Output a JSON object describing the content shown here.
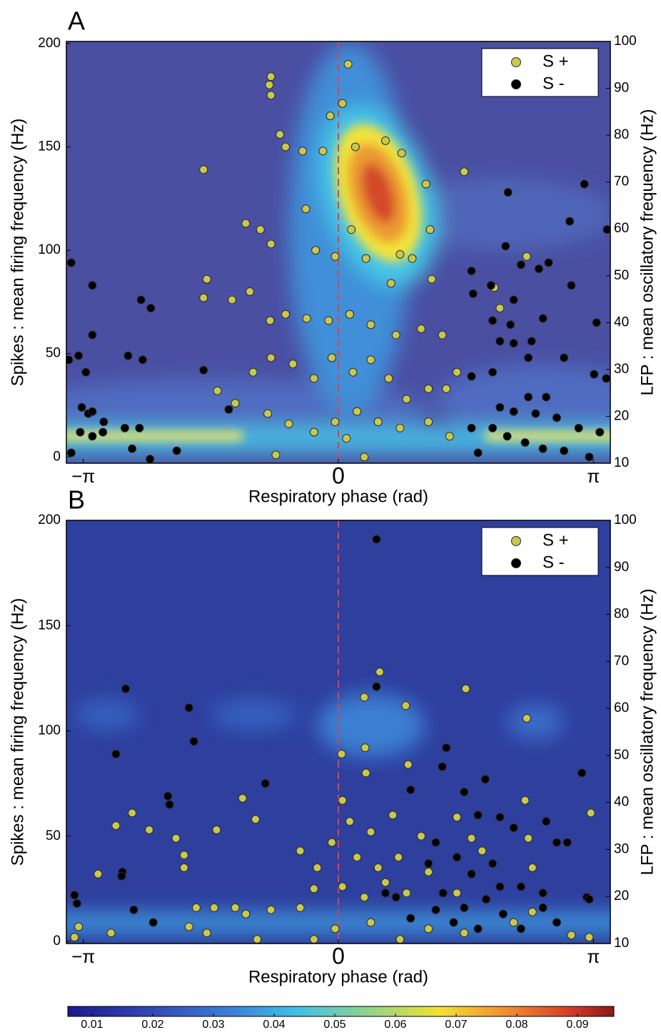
{
  "chart_data": [
    {
      "type": "scatter",
      "panel_label": "A",
      "xlabel": "Respiratory phase (rad)",
      "ylabel": "Spikes : mean firing frequency (Hz)",
      "y2label": "LFP : mean oscillatory frequency (Hz)",
      "xlim": [
        -3.35,
        3.35
      ],
      "xticks": [
        {
          "value": -3.1416,
          "label": "−π"
        },
        {
          "value": 0,
          "label": "0"
        },
        {
          "value": 3.1416,
          "label": "π"
        }
      ],
      "ylim": [
        -3,
        201
      ],
      "yticks": [
        0,
        50,
        100,
        150,
        200
      ],
      "y2lim": [
        10,
        100
      ],
      "y2ticks": [
        10,
        20,
        30,
        40,
        50,
        60,
        70,
        80,
        90,
        100
      ],
      "reference_x": 0,
      "reference_color": "#e0404a",
      "legend": "upper right",
      "series": [
        {
          "name": "S +",
          "color": "#c9c84e",
          "x": [
            0.12,
            -0.83,
            -0.85,
            -0.83,
            -0.72,
            -0.65,
            -1.66,
            -0.1,
            0.05,
            0.21,
            0.58,
            0.78,
            1.08,
            1.55,
            -0.44,
            -0.19,
            -0.4,
            -1.14,
            -0.96,
            -0.83,
            -1.62,
            -1.66,
            -1.31,
            -1.09,
            -0.28,
            -0.04,
            0.16,
            0.34,
            0.76,
            0.91,
            1.13,
            1.15,
            0.65,
            -0.84,
            -0.65,
            -0.39,
            -0.12,
            0.14,
            0.4,
            0.71,
            1.02,
            1.28,
            -1.49,
            -1.27,
            -1.05,
            -0.83,
            -0.56,
            -0.3,
            -0.08,
            0.18,
            0.4,
            0.62,
            0.84,
            1.11,
            1.33,
            1.46,
            -0.87,
            -0.61,
            -0.3,
            -0.04,
            0.23,
            0.49,
            0.76,
            1.11,
            1.37,
            -0.77,
            0.32,
            0.1,
            1.92,
            1.99,
            2.32
          ],
          "values": [
            190,
            184,
            180,
            175,
            156,
            150,
            139,
            165,
            171,
            150,
            153,
            147,
            132,
            138,
            148,
            148,
            120,
            113,
            110,
            103,
            86,
            77,
            76,
            80,
            100,
            97,
            110,
            96,
            98,
            96,
            110,
            86,
            84,
            66,
            69,
            67,
            66,
            69,
            64,
            59,
            62,
            59,
            32,
            26,
            41,
            48,
            45,
            38,
            48,
            41,
            47,
            38,
            28,
            33,
            33,
            41,
            21,
            16,
            12,
            17,
            22,
            17,
            14,
            17,
            10,
            1,
            0,
            9,
            82,
            72,
            97
          ]
        },
        {
          "name": "S -",
          "color": "#000000",
          "x": [
            -3.29,
            -3.03,
            -3.03,
            -2.43,
            -2.31,
            -2.59,
            -2.41,
            -3.32,
            -3.2,
            -3.11,
            -1.66,
            -3.16,
            -3.08,
            -3.03,
            -2.89,
            -3.18,
            -3.03,
            -2.9,
            -2.63,
            -2.45,
            -2.54,
            -2.32,
            -1.99,
            -3.29,
            -1.35,
            2.09,
            3.03,
            2.85,
            3.31,
            2.06,
            2.25,
            2.47,
            2.59,
            1.64,
            1.88,
            1.66,
            2.16,
            2.52,
            2.87,
            1.9,
            2.12,
            3.18,
            2.38,
            2.16,
            1.99,
            2.34,
            2.78,
            1.9,
            1.64,
            3.15,
            3.3,
            2.34,
            2.56,
            1.99,
            2.16,
            2.43,
            2.69,
            2.96,
            3.22,
            1.9,
            2.08,
            2.3,
            2.52,
            2.78,
            3.09,
            1.72,
            1.64
          ],
          "values": [
            94,
            83,
            59,
            76,
            72,
            49,
            47,
            47,
            49,
            41,
            42,
            24,
            21,
            22,
            17,
            12,
            10,
            12,
            14,
            14,
            4,
            -1,
            3,
            2,
            23,
            128,
            132,
            114,
            110,
            102,
            93,
            91,
            94,
            90,
            83,
            79,
            76,
            67,
            83,
            66,
            64,
            65,
            56,
            55,
            56,
            48,
            48,
            41,
            39,
            40,
            38,
            29,
            29,
            24,
            22,
            21,
            19,
            14,
            12,
            14,
            10,
            7,
            4,
            3,
            0,
            2,
            14
          ]
        }
      ]
    },
    {
      "type": "scatter",
      "panel_label": "B",
      "xlabel": "Respiratory phase (rad)",
      "ylabel": "Spikes : mean firing frequency (Hz)",
      "y2label": "LFP : mean oscillatory frequency (Hz)",
      "xlim": [
        -3.35,
        3.35
      ],
      "xticks": [
        {
          "value": -3.1416,
          "label": "−π"
        },
        {
          "value": 0,
          "label": "0"
        },
        {
          "value": 3.1416,
          "label": "π"
        }
      ],
      "ylim": [
        -1,
        200
      ],
      "yticks": [
        0,
        50,
        100,
        150,
        200
      ],
      "y2lim": [
        10,
        100
      ],
      "y2ticks": [
        10,
        20,
        30,
        40,
        50,
        60,
        70,
        80,
        90,
        100
      ],
      "reference_x": 0,
      "reference_color": "#e0404a",
      "legend": "upper right",
      "series": [
        {
          "name": "S +",
          "color": "#c9c84e",
          "x": [
            1.57,
            2.32,
            0.51,
            0.32,
            0.83,
            0.04,
            0.33,
            0.34,
            0.86,
            -1.18,
            -2.74,
            -2.54,
            -2.33,
            -1.5,
            -1.02,
            -2.0,
            -1.9,
            -1.9,
            -2.96,
            2.3,
            2.34,
            2.39,
            3.11,
            0.05,
            0.14,
            0.4,
            0.67,
            1.02,
            1.46,
            1.64,
            -0.47,
            -0.26,
            -0.08,
            0.23,
            0.49,
            0.74,
            1.11,
            1.77,
            1.46,
            -0.3,
            0.05,
            0.32,
            0.58,
            0.84,
            -1.27,
            -1.14,
            -1.53,
            -1.75,
            -3.2,
            -2.8,
            -1.84,
            -1.62,
            -0.83,
            -0.47,
            -0.04,
            0.4,
            1.11,
            1.55,
            2.16,
            2.39,
            2.87,
            -3.25,
            3.09,
            -1.0,
            -0.3,
            0.76
          ],
          "values": [
            120,
            106,
            128,
            116,
            112,
            89,
            92,
            80,
            84,
            68,
            55,
            61,
            53,
            53,
            58,
            49,
            41,
            35,
            32,
            67,
            49,
            35,
            61,
            67,
            57,
            52,
            60,
            50,
            59,
            49,
            43,
            35,
            47,
            40,
            35,
            40,
            33,
            43,
            23,
            25,
            26,
            21,
            28,
            23,
            16,
            13,
            16,
            16,
            7,
            4,
            7,
            4,
            15,
            16,
            6,
            9,
            6,
            4,
            9,
            14,
            3,
            2,
            2,
            1,
            1,
            1
          ]
        },
        {
          "name": "S -",
          "color": "#000000",
          "x": [
            0.47,
            0.47,
            -2.62,
            -2.74,
            -1.84,
            -1.78,
            -0.9,
            -2.1,
            -2.08,
            -3.25,
            -3.22,
            -2.66,
            -2.67,
            -2.52,
            -2.28,
            3.0,
            1.33,
            1.28,
            0.89,
            1.55,
            1.81,
            1.72,
            1.99,
            2.16,
            2.56,
            2.69,
            2.82,
            1.2,
            1.46,
            1.11,
            1.64,
            1.9,
            1.99,
            2.25,
            2.52,
            1.29,
            1.55,
            1.82,
            1.2,
            0.89,
            2.03,
            2.52,
            2.69,
            0.58,
            0.71,
            3.06,
            3.09,
            1.42,
            2.25,
            1.72
          ],
          "values": [
            191,
            121,
            120,
            89,
            111,
            95,
            75,
            69,
            65,
            22,
            18,
            33,
            31,
            15,
            9,
            80,
            92,
            83,
            72,
            71,
            77,
            60,
            59,
            54,
            57,
            47,
            47,
            47,
            40,
            37,
            32,
            37,
            26,
            26,
            23,
            23,
            16,
            20,
            15,
            11,
            13,
            16,
            9,
            23,
            21,
            21,
            20,
            9,
            6,
            6
          ]
        }
      ]
    }
  ],
  "colorbar": {
    "lim": [
      0.006,
      0.096
    ],
    "ticks": [
      0.01,
      0.02,
      0.03,
      0.04,
      0.05,
      0.06,
      0.07,
      0.08,
      0.09
    ]
  }
}
